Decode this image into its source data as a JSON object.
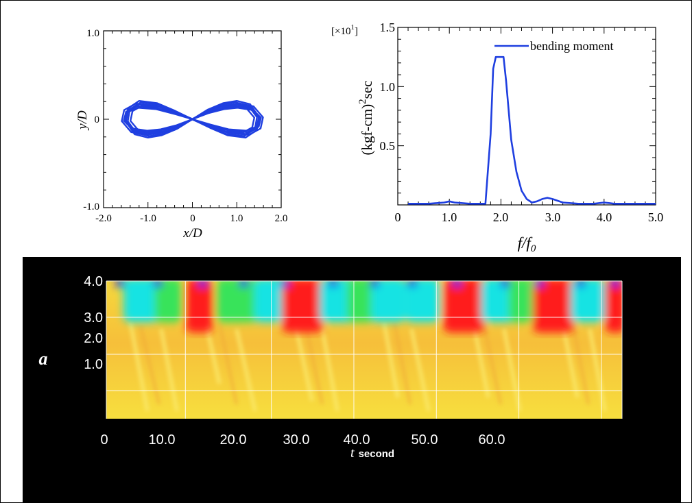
{
  "chart_data": [
    {
      "type": "line",
      "xlabel": "x/D",
      "ylabel": "y/D",
      "xlim": [
        -2.0,
        2.0
      ],
      "ylim": [
        -1.0,
        1.0
      ],
      "x_ticks": [
        "-2.0",
        "-1.0",
        "0",
        "1.0",
        "2.0"
      ],
      "y_ticks": [
        "-1.0",
        "0",
        "1.0"
      ],
      "color": "#1f3fe0",
      "series": [
        {
          "x": [
            0,
            0.35,
            0.7,
            1.0,
            1.3,
            1.5,
            1.45,
            1.2,
            0.8,
            0.4,
            0,
            -0.4,
            -0.8,
            -1.2,
            -1.45,
            -1.5,
            -1.3,
            -1.0,
            -0.7,
            -0.35,
            0
          ],
          "y": [
            0,
            0.09,
            0.15,
            0.17,
            0.14,
            0.02,
            -0.1,
            -0.17,
            -0.15,
            -0.08,
            0,
            0.08,
            0.15,
            0.17,
            0.1,
            -0.02,
            -0.14,
            -0.17,
            -0.15,
            -0.09,
            0
          ]
        }
      ]
    },
    {
      "type": "line",
      "xlabel": "f/f",
      "xlabel_sub": "0",
      "ylabel_main": "(kgf-cm)",
      "ylabel_sup": "2",
      "ylabel_tail": "sec",
      "scale_main": "[×10",
      "scale_sup": "1",
      "scale_tail": "]",
      "xlim": [
        0,
        5.0
      ],
      "ylim": [
        0,
        1.5
      ],
      "x_ticks": [
        "0",
        "1.0",
        "2.0",
        "3.0",
        "4.0",
        "5.0"
      ],
      "y_ticks": [
        "0.5",
        "1.0",
        "1.5"
      ],
      "color": "#1f3fe0",
      "series": [
        {
          "name": "bending moment",
          "x": [
            0.2,
            0.6,
            0.9,
            1.0,
            1.1,
            1.4,
            1.7,
            1.8,
            1.85,
            1.9,
            2.05,
            2.1,
            2.2,
            2.3,
            2.4,
            2.5,
            2.6,
            2.7,
            2.8,
            2.9,
            3.0,
            3.2,
            3.5,
            3.8,
            4.0,
            4.2,
            4.6,
            5.0
          ],
          "y": [
            0.01,
            0.01,
            0.02,
            0.03,
            0.02,
            0.01,
            0.01,
            0.6,
            1.15,
            1.25,
            1.25,
            1.05,
            0.55,
            0.28,
            0.12,
            0.05,
            0.02,
            0.03,
            0.05,
            0.06,
            0.05,
            0.02,
            0.01,
            0.01,
            0.02,
            0.01,
            0.01,
            0.01
          ]
        }
      ]
    },
    {
      "type": "heatmap",
      "ylabel": "a",
      "xlabel": "t",
      "xlabel_unit": "second",
      "xlim": [
        0,
        75
      ],
      "ylim": [
        0,
        4.0
      ],
      "x_ticks": [
        "0",
        "10.0",
        "20.0",
        "30.0",
        "40.0",
        "50.0",
        "60.0"
      ],
      "y_ticks": [
        "4.0",
        "3.0",
        "2.0",
        "1.0"
      ],
      "colors": {
        "background": "#000000",
        "base": "#f6d43a",
        "low": "#f7cc3a",
        "hot": "#ff1d1d",
        "cyan": "#19e3e3",
        "green": "#38e35a",
        "blue": "#1a1ae8"
      },
      "vertical_gridlines_t": [
        10,
        20,
        30,
        40,
        50,
        60
      ]
    }
  ]
}
